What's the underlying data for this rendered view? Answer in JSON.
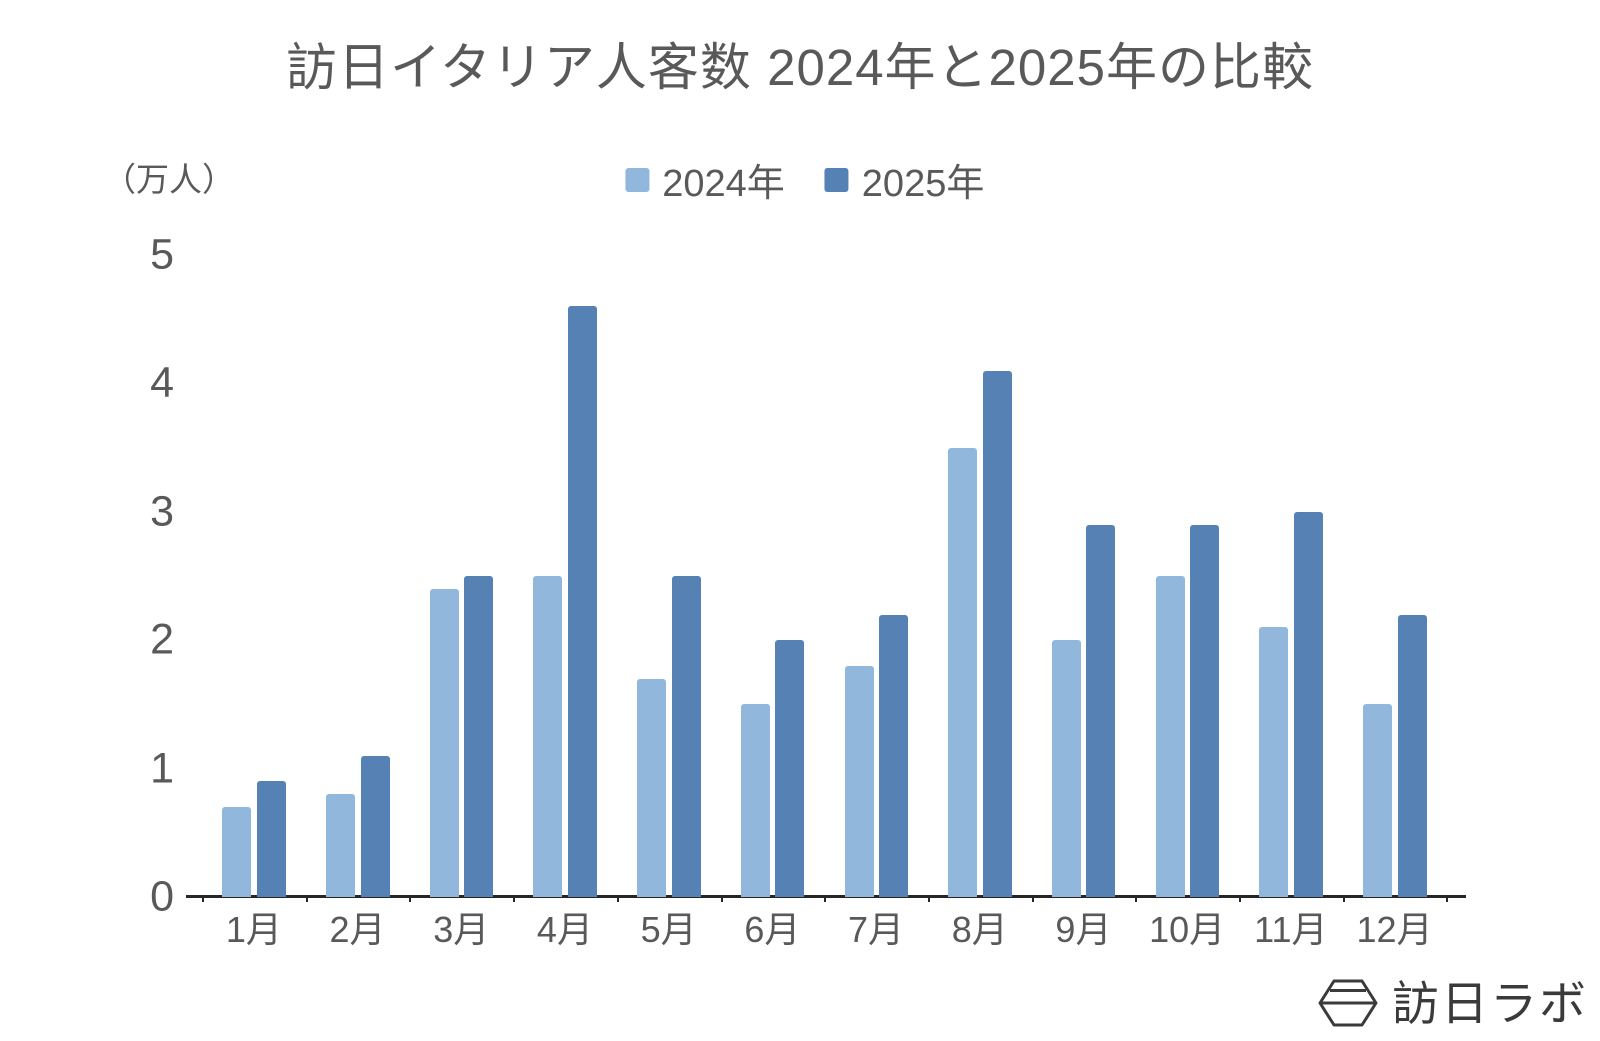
{
  "title": "訪日イタリア人客数 2024年と2025年の比較",
  "y_axis": {
    "unit_label": "（万人）"
  },
  "legend": [
    {
      "label": "2024年",
      "color": "#91B8DC"
    },
    {
      "label": "2025年",
      "color": "#5681B5"
    }
  ],
  "chart_data": {
    "type": "bar",
    "title": "訪日イタリア人客数 2024年と2025年の比較",
    "ylabel": "（万人）",
    "xlabel": "",
    "ylim": [
      0,
      5
    ],
    "yticks": [
      0,
      1,
      2,
      3,
      4,
      5
    ],
    "grid": false,
    "legend_position": "top-center",
    "categories": [
      "1月",
      "2月",
      "3月",
      "4月",
      "5月",
      "6月",
      "7月",
      "8月",
      "9月",
      "10月",
      "11月",
      "12月"
    ],
    "series": [
      {
        "name": "2024年",
        "color": "#91B8DC",
        "values": [
          0.7,
          0.8,
          2.4,
          2.5,
          1.7,
          1.5,
          1.8,
          3.5,
          2.0,
          2.5,
          2.1,
          1.5
        ]
      },
      {
        "name": "2025年",
        "color": "#5681B5",
        "values": [
          0.9,
          1.1,
          2.5,
          4.6,
          2.5,
          2.0,
          2.2,
          4.1,
          2.9,
          2.9,
          3.0,
          2.2
        ]
      }
    ]
  },
  "logo": {
    "text": "訪日ラボ"
  },
  "colors": {
    "background": "#FFFFFF",
    "text_gray": "#595959",
    "axis": "#262626",
    "logo_ink": "#3a3a3a"
  }
}
